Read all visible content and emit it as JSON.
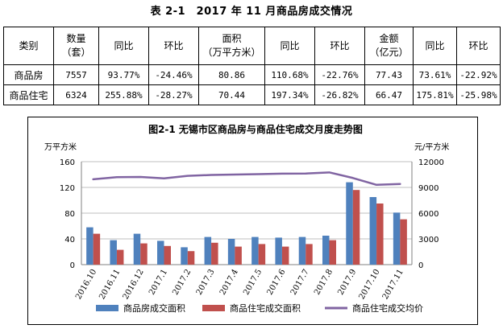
{
  "table": {
    "title": "表 2-1　2017 年 11 月商品房成交情况",
    "headers": [
      [
        "类别"
      ],
      [
        "数量",
        "（套）"
      ],
      [
        "同比"
      ],
      [
        "环比"
      ],
      [
        "面积",
        "（万平方米）"
      ],
      [
        "同比"
      ],
      [
        "环比"
      ],
      [
        "金额",
        "（亿元）"
      ],
      [
        "同比"
      ],
      [
        "环比"
      ]
    ],
    "rows": [
      [
        "商品房",
        "7557",
        "93.77%",
        "-24.46%",
        "80.86",
        "110.68%",
        "-22.76%",
        "77.43",
        "73.61%",
        "-22.92%"
      ],
      [
        "商品住宅",
        "6324",
        "255.88%",
        "-28.27%",
        "70.44",
        "197.34%",
        "-26.82%",
        "66.47",
        "175.81%",
        "-25.98%"
      ]
    ]
  },
  "chart_data": {
    "type": "bar",
    "title": "图2-1 无锡市区商品房与商品住宅成交月度走势图",
    "ylabel": "万平方米",
    "ylabel_right": "元/平方米",
    "categories": [
      "2016.10",
      "2016.11",
      "2016.12",
      "2017.1",
      "2017.2",
      "2017.3",
      "2017.4",
      "2017.5",
      "2017.6",
      "2017.7",
      "2017.8",
      "2017.9",
      "2017.10",
      "2017.11"
    ],
    "ylim": [
      0,
      160
    ],
    "yticks": [
      0,
      40,
      80,
      120,
      160
    ],
    "ylim_right": [
      0,
      12000
    ],
    "yticks_right": [
      0,
      3000,
      6000,
      9000,
      12000
    ],
    "grid": true,
    "legend": "bottom",
    "series": [
      {
        "name": "商品房成交面积",
        "kind": "bar",
        "axis": "left",
        "color": "#4F81BD",
        "values": [
          58,
          38,
          48,
          37,
          27,
          43,
          40,
          43,
          42,
          43,
          45,
          128,
          105,
          80.86
        ]
      },
      {
        "name": "商品住宅成交面积",
        "kind": "bar",
        "axis": "left",
        "color": "#C0504D",
        "values": [
          48,
          23,
          33,
          29,
          21,
          34,
          28,
          32,
          28,
          32,
          38,
          116,
          95,
          70.44
        ]
      },
      {
        "name": "商品住宅成交均价",
        "kind": "line",
        "axis": "right",
        "color": "#8064A2",
        "values": [
          9950,
          10200,
          10220,
          10050,
          10350,
          10450,
          10500,
          10550,
          10600,
          10620,
          10750,
          10100,
          9300,
          9400
        ]
      }
    ]
  }
}
